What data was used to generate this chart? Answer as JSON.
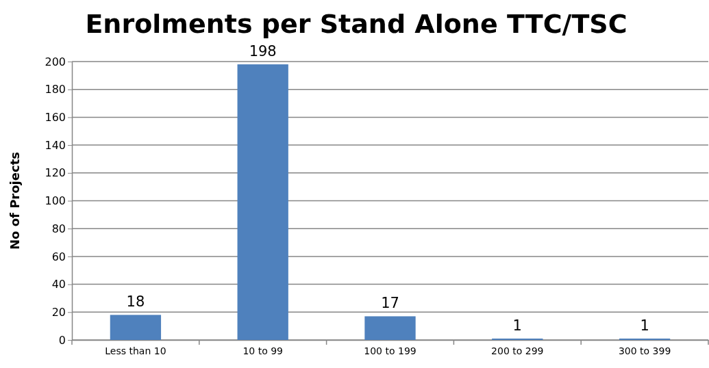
{
  "chart_data": {
    "type": "bar",
    "title": "Enrolments per Stand Alone TTC/TSC",
    "ylabel": "No of Projects",
    "categories": [
      "Less than 10",
      "10 to 99",
      "100 to 199",
      "200 to 299",
      "300 to 399"
    ],
    "values": [
      18,
      198,
      17,
      1,
      1
    ],
    "color": "#4f81bd",
    "ylim": [
      0,
      200
    ],
    "yticks": [
      0,
      20,
      40,
      60,
      80,
      100,
      120,
      140,
      160,
      180,
      200
    ],
    "grid": "y",
    "data_labels": true
  }
}
